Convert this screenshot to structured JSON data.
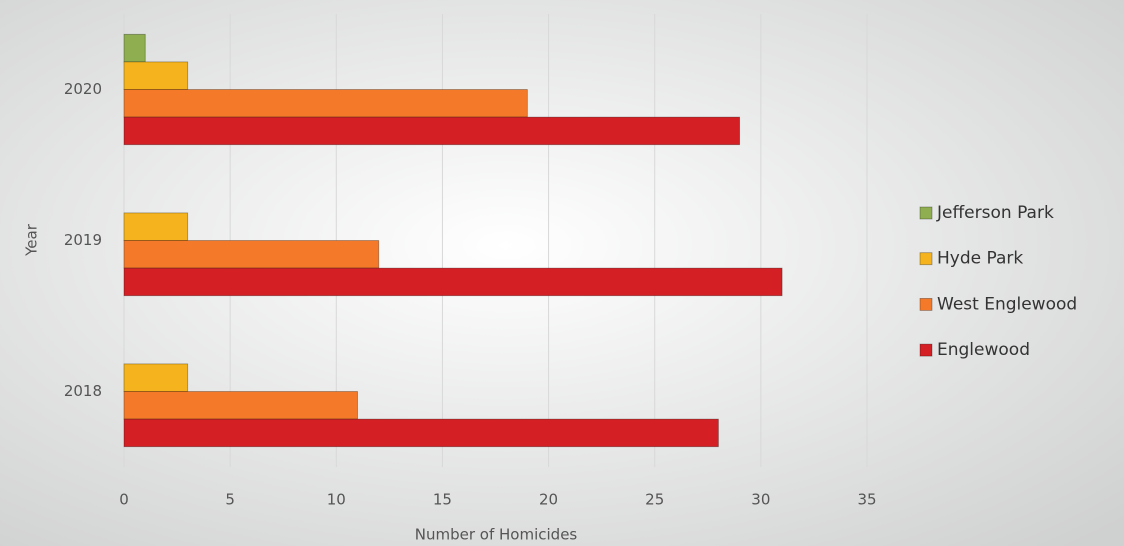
{
  "chart_data": {
    "type": "bar",
    "orientation": "horizontal",
    "x_label": "Number of Homicides",
    "y_label": "Year",
    "categories": [
      "2018",
      "2019",
      "2020"
    ],
    "series": [
      {
        "name": "Jefferson Park",
        "color": "#8fae4f",
        "values": [
          0,
          0,
          1
        ]
      },
      {
        "name": "Hyde Park",
        "color": "#f5b41e",
        "values": [
          3,
          3,
          3
        ]
      },
      {
        "name": "West Englewood",
        "color": "#f47a2a",
        "values": [
          11,
          12,
          19
        ]
      },
      {
        "name": "Englewood",
        "color": "#d42024",
        "values": [
          28,
          31,
          29
        ]
      }
    ],
    "xlim": [
      0,
      35
    ],
    "xticks": [
      0,
      5,
      10,
      15,
      20,
      25,
      30,
      35
    ],
    "grid": true
  }
}
